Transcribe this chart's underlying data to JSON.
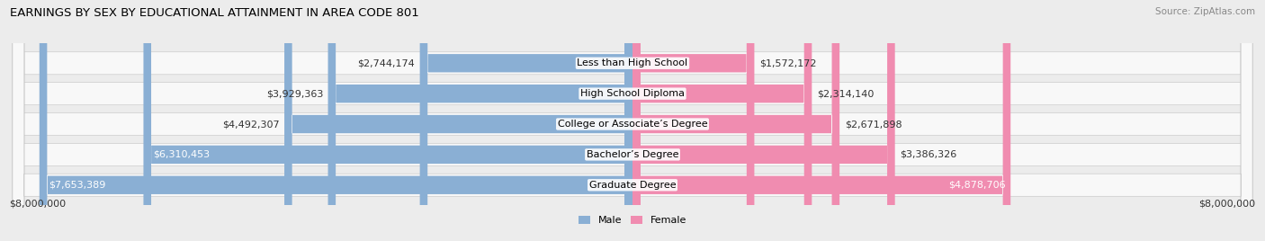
{
  "title": "EARNINGS BY SEX BY EDUCATIONAL ATTAINMENT IN AREA CODE 801",
  "source": "Source: ZipAtlas.com",
  "categories": [
    "Less than High School",
    "High School Diploma",
    "College or Associate’s Degree",
    "Bachelor’s Degree",
    "Graduate Degree"
  ],
  "male_values": [
    2744174,
    3929363,
    4492307,
    6310453,
    7653389
  ],
  "female_values": [
    1572172,
    2314140,
    2671898,
    3386326,
    4878706
  ],
  "male_labels": [
    "$2,744,174",
    "$3,929,363",
    "$4,492,307",
    "$6,310,453",
    "$7,653,389"
  ],
  "female_labels": [
    "$1,572,172",
    "$2,314,140",
    "$2,671,898",
    "$3,386,326",
    "$4,878,706"
  ],
  "male_color": "#8AAFD4",
  "female_color": "#F08CB0",
  "axis_max": 8000000,
  "background_color": "#ececec",
  "bar_bg_color": "#f8f8f8",
  "title_fontsize": 9.5,
  "label_fontsize": 8.0,
  "axis_label": "$8,000,000",
  "male_inside_threshold": 5000000,
  "female_inside_threshold": 3800000
}
